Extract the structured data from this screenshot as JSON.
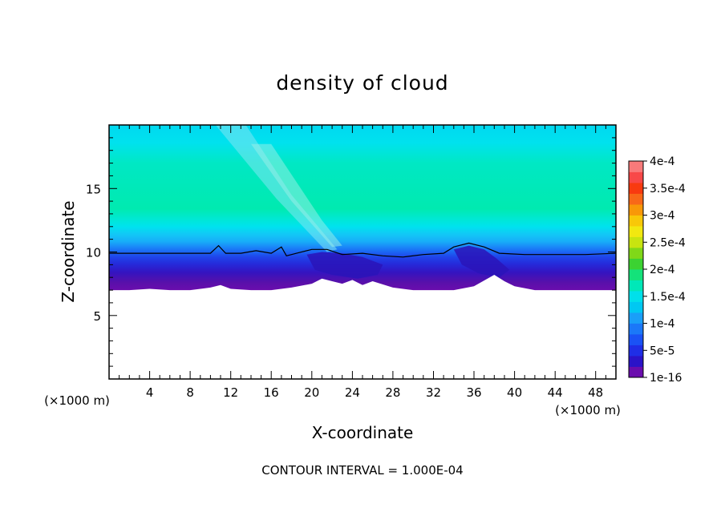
{
  "chart_data": {
    "type": "heatmap",
    "title": "density of cloud",
    "xlabel": "X-coordinate",
    "ylabel": "Z-coordinate",
    "x_unit_left": "(×1000 m)",
    "x_unit_right": "(×1000 m)",
    "footer": "CONTOUR INTERVAL = 1.000E-04",
    "xlim": [
      0,
      50
    ],
    "ylim": [
      0,
      20
    ],
    "x_ticks": [
      4,
      8,
      12,
      16,
      20,
      24,
      28,
      32,
      36,
      40,
      44,
      48
    ],
    "y_ticks": [
      5,
      10,
      15
    ],
    "contour_level": 0.0001,
    "cloud_base": [
      [
        0,
        7.0
      ],
      [
        2,
        7.0
      ],
      [
        4,
        7.1
      ],
      [
        6,
        7.0
      ],
      [
        8,
        7.0
      ],
      [
        10,
        7.2
      ],
      [
        11,
        7.4
      ],
      [
        12,
        7.1
      ],
      [
        14,
        7.0
      ],
      [
        16,
        7.0
      ],
      [
        18,
        7.2
      ],
      [
        20,
        7.5
      ],
      [
        21,
        7.9
      ],
      [
        22,
        7.7
      ],
      [
        23,
        7.5
      ],
      [
        24,
        7.8
      ],
      [
        25,
        7.4
      ],
      [
        26,
        7.7
      ],
      [
        28,
        7.2
      ],
      [
        30,
        7.0
      ],
      [
        32,
        7.0
      ],
      [
        34,
        7.0
      ],
      [
        36,
        7.3
      ],
      [
        38,
        8.2
      ],
      [
        39,
        7.7
      ],
      [
        40,
        7.3
      ],
      [
        42,
        7.0
      ],
      [
        44,
        7.0
      ],
      [
        46,
        7.0
      ],
      [
        48,
        7.0
      ],
      [
        50,
        7.0
      ]
    ],
    "contour_1e-4": [
      [
        0,
        9.9
      ],
      [
        2,
        9.9
      ],
      [
        4,
        9.9
      ],
      [
        6,
        9.9
      ],
      [
        8,
        9.9
      ],
      [
        10,
        9.9
      ],
      [
        10.8,
        10.5
      ],
      [
        11.5,
        9.9
      ],
      [
        13,
        9.9
      ],
      [
        14.5,
        10.1
      ],
      [
        16,
        9.9
      ],
      [
        17,
        10.4
      ],
      [
        17.5,
        9.7
      ],
      [
        18.5,
        9.9
      ],
      [
        20,
        10.2
      ],
      [
        21.5,
        10.2
      ],
      [
        23,
        9.8
      ],
      [
        25,
        9.9
      ],
      [
        27,
        9.7
      ],
      [
        29,
        9.6
      ],
      [
        31,
        9.8
      ],
      [
        33,
        9.9
      ],
      [
        34,
        10.4
      ],
      [
        35.5,
        10.7
      ],
      [
        37,
        10.4
      ],
      [
        38.5,
        9.9
      ],
      [
        41,
        9.8
      ],
      [
        44,
        9.8
      ],
      [
        47,
        9.8
      ],
      [
        50,
        9.9
      ]
    ],
    "colorbar": {
      "labels": [
        "4e-4",
        "3.5e-4",
        "3e-4",
        "2.5e-4",
        "2e-4",
        "1.5e-4",
        "1e-4",
        "5e-5",
        "1e-16"
      ],
      "values": [
        0.0004,
        0.00035,
        0.0003,
        0.00025,
        0.0002,
        0.00015,
        0.0001,
        5e-05,
        1e-16
      ],
      "colors_bottom_to_top": [
        "#6a0dad",
        "#2b13c8",
        "#1f2ee6",
        "#1a52f5",
        "#1b78f8",
        "#1a9ff8",
        "#00c8f2",
        "#00e0ea",
        "#00e8b8",
        "#14e27a",
        "#3cd232",
        "#80d818",
        "#c8e410",
        "#f2e810",
        "#f8c808",
        "#f89808",
        "#f86818",
        "#f83a10",
        "#f84848",
        "#f87a7a"
      ]
    }
  }
}
